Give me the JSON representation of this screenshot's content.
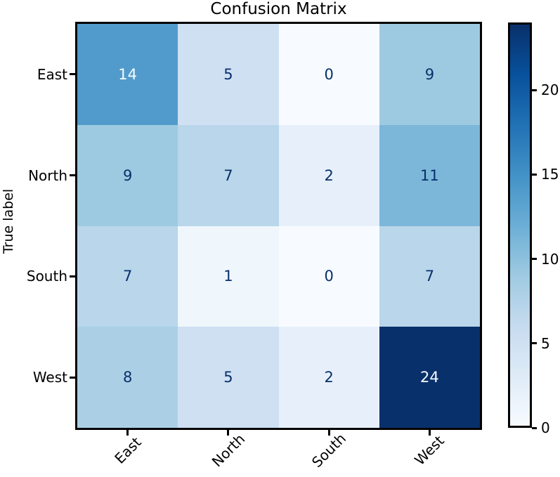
{
  "title": "Confusion Matrix",
  "axes": {
    "ylabel": "True label",
    "xlabel": "",
    "x_tick_labels": [
      "East",
      "North",
      "South",
      "West"
    ],
    "y_tick_labels": [
      "East",
      "North",
      "South",
      "West"
    ]
  },
  "chart_data": {
    "type": "heatmap",
    "title": "Confusion Matrix",
    "xlabel": "",
    "ylabel": "True label",
    "x_categories": [
      "East",
      "North",
      "South",
      "West"
    ],
    "y_categories": [
      "East",
      "North",
      "South",
      "West"
    ],
    "matrix": [
      [
        14,
        5,
        0,
        9
      ],
      [
        9,
        7,
        2,
        11
      ],
      [
        7,
        1,
        0,
        7
      ],
      [
        8,
        5,
        2,
        24
      ]
    ],
    "vmin": 0,
    "vmax": 24,
    "colormap": "Blues",
    "colorbar_ticks": [
      0,
      5,
      10,
      15,
      20
    ],
    "colorbar_position": "right",
    "grid": false
  },
  "style": {
    "cell_colors": [
      [
        "#509bcb",
        "#cee0f2",
        "#f7fbff",
        "#9ecae1"
      ],
      [
        "#9ecae1",
        "#b9d6ea",
        "#e7f0fa",
        "#7cb7da"
      ],
      [
        "#b9d6ea",
        "#eff6fc",
        "#f7fbff",
        "#b9d6ea"
      ],
      [
        "#abd0e6",
        "#cee0f2",
        "#e7f0fa",
        "#08306b"
      ]
    ],
    "dark_text_color": "#08306b",
    "light_text_color": "#f7fbff",
    "frame_color": "#000000",
    "colorbar_gradient_stops": [
      "#f7fbff",
      "#deebf7",
      "#c6dbef",
      "#9ecae1",
      "#6baed6",
      "#4292c6",
      "#2171b5",
      "#08519c",
      "#08306b"
    ]
  }
}
